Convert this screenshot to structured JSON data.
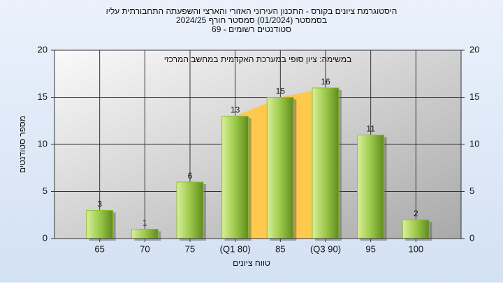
{
  "chart_data": {
    "type": "bar",
    "title": "היסטוגרמת ציונים בקורס - התכנון העירוני האזורי והארצי והשפעתה התחבורתית עליו",
    "title_line2": "בסמסטר  (01/2024)  סמסטר חורף 2024/25",
    "title_line3": "סטודנטים רשומים - 69",
    "subtitle": "במשימה: ציון סופי במערכת האקדמית במחשב המרכזי",
    "y_label": "מספר סטודנטים",
    "x_label": "טווח ציונים",
    "categories": [
      "65",
      "70",
      "75",
      "(Q1 80)",
      "85",
      "(Q3 90)",
      "95",
      "100"
    ],
    "values": [
      3,
      1,
      6,
      13,
      15,
      16,
      11,
      2
    ],
    "color": "#8fbf3a",
    "quartile_color": "#ffc94d",
    "ylim": [
      0,
      20
    ],
    "yticks": [
      0,
      5,
      10,
      15,
      20
    ],
    "y2lim": [
      0,
      20
    ],
    "y2ticks": [
      0,
      5,
      10,
      15,
      20
    ],
    "grid": true
  }
}
